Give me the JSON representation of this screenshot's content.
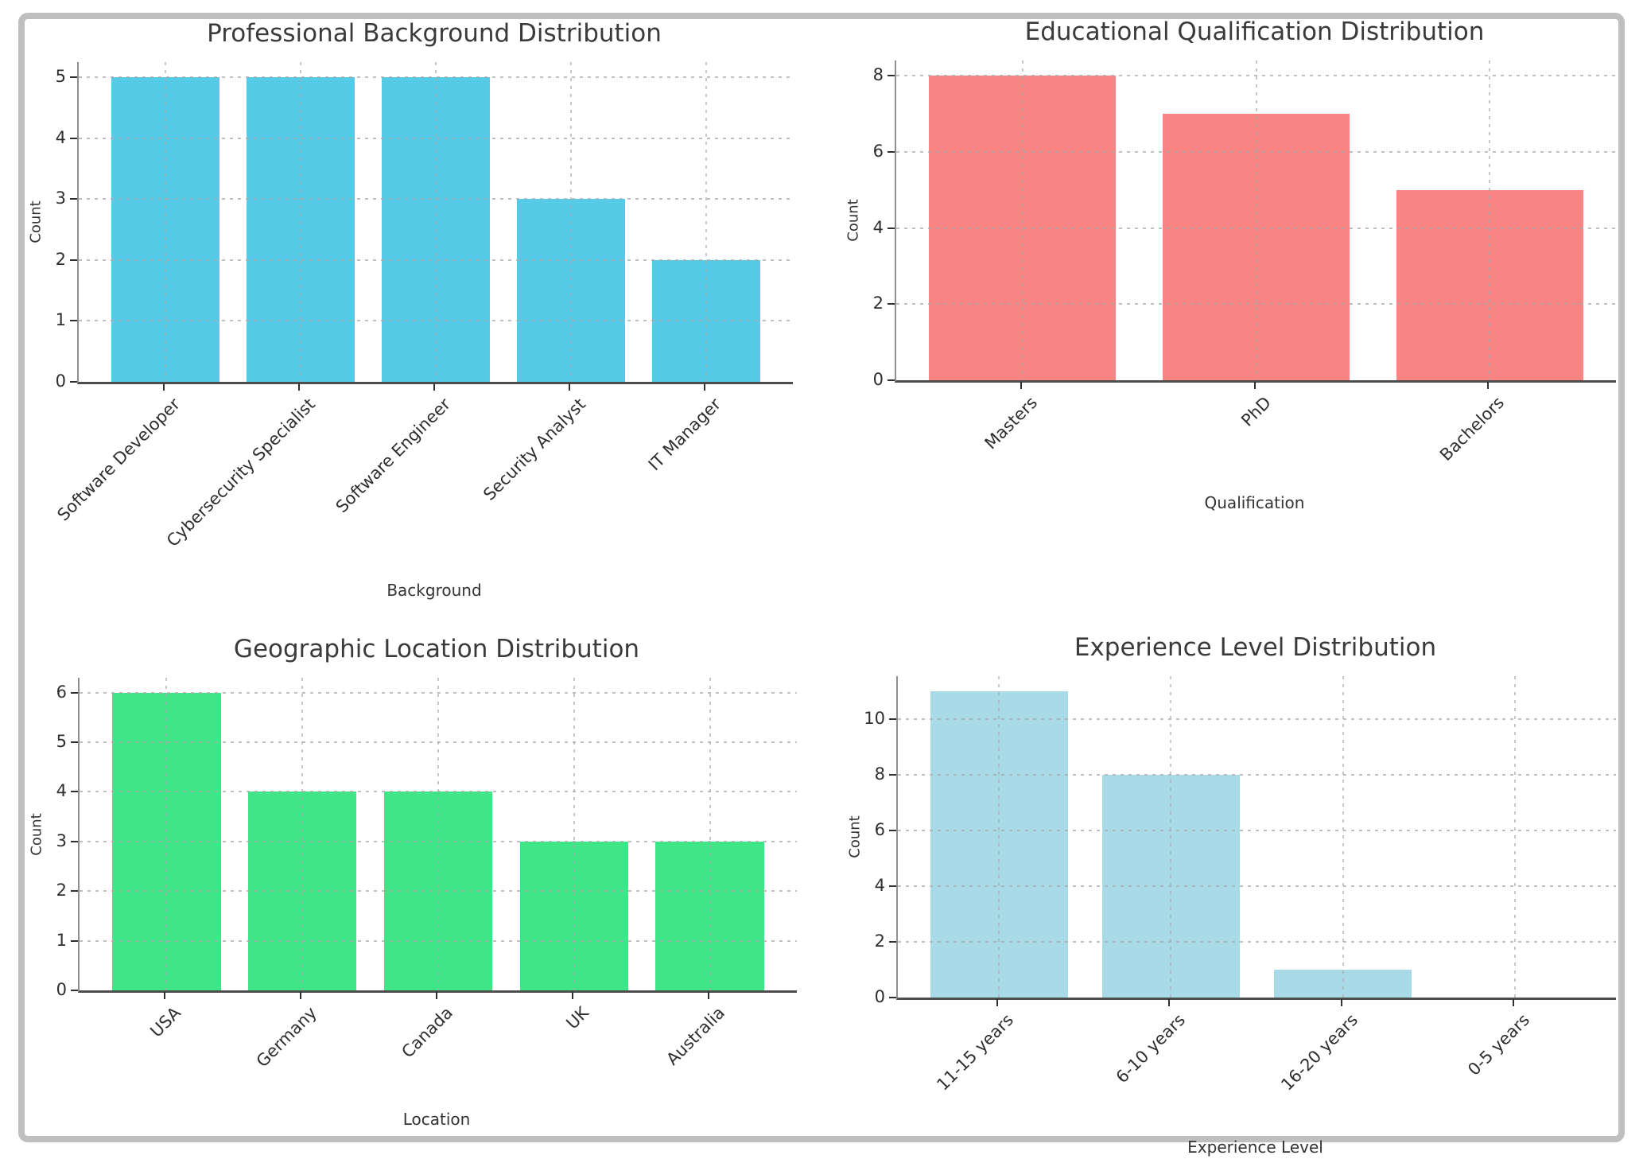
{
  "figure": {
    "background_color": "#ffffff",
    "border_color": "#bfbfbf"
  },
  "chart_data": [
    {
      "type": "bar",
      "title": "Professional Background Distribution",
      "xlabel": "Background",
      "ylabel": "Count",
      "categories": [
        "Software Developer",
        "Cybersecurity Specialist",
        "Software Engineer",
        "Security Analyst",
        "IT Manager"
      ],
      "values": [
        5,
        5,
        5,
        3,
        2
      ],
      "bar_color": "#55CBE8",
      "yticks": [
        0,
        1,
        2,
        3,
        4,
        5
      ],
      "ylim": [
        0,
        5.25
      ],
      "grid": "dashed-both-axes",
      "legend": "none"
    },
    {
      "type": "bar",
      "title": "Educational Qualification Distribution",
      "xlabel": "Qualification",
      "ylabel": "Count",
      "categories": [
        "Masters",
        "PhD",
        "Bachelors"
      ],
      "values": [
        8,
        7,
        5
      ],
      "bar_color": "#F88484",
      "yticks": [
        0,
        2,
        4,
        6,
        8
      ],
      "ylim": [
        0,
        8.4
      ],
      "grid": "dashed-both-axes",
      "legend": "none"
    },
    {
      "type": "bar",
      "title": "Geographic Location Distribution",
      "xlabel": "Location",
      "ylabel": "Count",
      "categories": [
        "USA",
        "Germany",
        "Canada",
        "UK",
        "Australia"
      ],
      "values": [
        6,
        4,
        4,
        3,
        3
      ],
      "bar_color": "#3FE687",
      "yticks": [
        0,
        1,
        2,
        3,
        4,
        5,
        6
      ],
      "ylim": [
        0,
        6.3
      ],
      "grid": "dashed-both-axes",
      "legend": "none"
    },
    {
      "type": "bar",
      "title": "Experience Level Distribution",
      "xlabel": "Experience Level",
      "ylabel": "Count",
      "categories": [
        "11-15 years",
        "6-10 years",
        "16-20 years",
        "0-5 years"
      ],
      "values": [
        11,
        8,
        1,
        0
      ],
      "bar_color": "#A9DAE8",
      "yticks": [
        0,
        2,
        4,
        6,
        8,
        10
      ],
      "ylim": [
        0,
        11.55
      ],
      "grid": "dashed-both-axes",
      "legend": "none"
    }
  ]
}
